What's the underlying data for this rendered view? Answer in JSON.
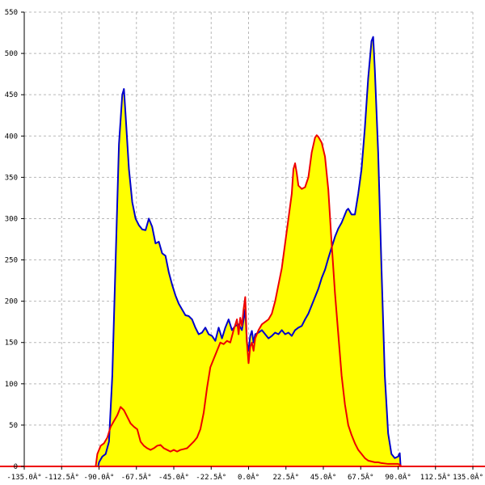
{
  "chart_data": {
    "type": "area",
    "title": "",
    "xlabel": "",
    "ylabel": "",
    "xlim": [
      -135,
      135
    ],
    "ylim": [
      0,
      550
    ],
    "grid": true,
    "fill_color": "#ffff00",
    "x_ticks": [
      -135,
      -112.5,
      -90,
      -67.5,
      -45,
      -22.5,
      0,
      22.5,
      45,
      67.5,
      90,
      112.5,
      135
    ],
    "x_tick_labels": [
      "-135.0Â°",
      "-112.5Â°",
      "-90.0Â°",
      "-67.5Â°",
      "-45.0Â°",
      "-22.5Â°",
      "0.0Â°",
      "22.5Â°",
      "45.0Â°",
      "67.5Â°",
      "90.0Â°",
      "112.5Â°",
      "135.0Â°"
    ],
    "y_ticks": [
      0,
      50,
      100,
      150,
      200,
      250,
      300,
      350,
      400,
      450,
      500,
      550
    ],
    "y_tick_labels": [
      "0",
      "50",
      "100",
      "150",
      "200",
      "250",
      "300",
      "350",
      "400",
      "450",
      "500",
      "550"
    ],
    "series": [
      {
        "color": "#0000cc",
        "points": [
          [
            -135,
            0
          ],
          [
            -90.5,
            0
          ],
          [
            -90,
            5
          ],
          [
            -88,
            12
          ],
          [
            -86,
            15
          ],
          [
            -84,
            30
          ],
          [
            -82,
            110
          ],
          [
            -80,
            250
          ],
          [
            -78,
            390
          ],
          [
            -76,
            450
          ],
          [
            -75,
            457
          ],
          [
            -74,
            425
          ],
          [
            -72,
            360
          ],
          [
            -70,
            320
          ],
          [
            -68,
            300
          ],
          [
            -66,
            292
          ],
          [
            -64,
            287
          ],
          [
            -62,
            286
          ],
          [
            -60,
            300
          ],
          [
            -58,
            290
          ],
          [
            -56,
            270
          ],
          [
            -54,
            272
          ],
          [
            -52,
            258
          ],
          [
            -50,
            255
          ],
          [
            -48,
            235
          ],
          [
            -46,
            220
          ],
          [
            -44,
            207
          ],
          [
            -42,
            197
          ],
          [
            -40,
            190
          ],
          [
            -38,
            183
          ],
          [
            -36,
            182
          ],
          [
            -34,
            178
          ],
          [
            -32,
            168
          ],
          [
            -30,
            160
          ],
          [
            -28,
            162
          ],
          [
            -26,
            168
          ],
          [
            -24,
            160
          ],
          [
            -22,
            158
          ],
          [
            -20,
            152
          ],
          [
            -18,
            168
          ],
          [
            -16,
            155
          ],
          [
            -14,
            168
          ],
          [
            -12,
            178
          ],
          [
            -10,
            165
          ],
          [
            -8,
            170
          ],
          [
            -6,
            172
          ],
          [
            -4,
            165
          ],
          [
            -2,
            190
          ],
          [
            -1,
            150
          ],
          [
            0,
            140
          ],
          [
            1,
            158
          ],
          [
            2,
            164
          ],
          [
            3,
            150
          ],
          [
            4,
            160
          ],
          [
            6,
            162
          ],
          [
            8,
            165
          ],
          [
            10,
            160
          ],
          [
            12,
            155
          ],
          [
            14,
            158
          ],
          [
            16,
            162
          ],
          [
            18,
            160
          ],
          [
            20,
            165
          ],
          [
            22,
            160
          ],
          [
            24,
            162
          ],
          [
            26,
            158
          ],
          [
            28,
            165
          ],
          [
            30,
            168
          ],
          [
            32,
            170
          ],
          [
            34,
            178
          ],
          [
            36,
            185
          ],
          [
            38,
            195
          ],
          [
            40,
            205
          ],
          [
            42,
            215
          ],
          [
            44,
            228
          ],
          [
            46,
            238
          ],
          [
            48,
            252
          ],
          [
            50,
            265
          ],
          [
            52,
            278
          ],
          [
            54,
            288
          ],
          [
            56,
            295
          ],
          [
            58,
            305
          ],
          [
            59,
            310
          ],
          [
            60,
            312
          ],
          [
            62,
            305
          ],
          [
            64,
            305
          ],
          [
            66,
            330
          ],
          [
            68,
            360
          ],
          [
            70,
            410
          ],
          [
            72,
            470
          ],
          [
            74,
            515
          ],
          [
            75,
            520
          ],
          [
            76,
            480
          ],
          [
            78,
            380
          ],
          [
            80,
            240
          ],
          [
            82,
            110
          ],
          [
            84,
            40
          ],
          [
            86,
            15
          ],
          [
            88,
            10
          ],
          [
            90,
            12
          ],
          [
            91,
            16
          ],
          [
            91.5,
            0
          ],
          [
            135,
            0
          ]
        ]
      },
      {
        "color": "#ee0000",
        "points": [
          [
            -135,
            0
          ],
          [
            -92,
            0
          ],
          [
            -91,
            15
          ],
          [
            -89,
            25
          ],
          [
            -87,
            28
          ],
          [
            -85,
            35
          ],
          [
            -83,
            48
          ],
          [
            -81,
            55
          ],
          [
            -79,
            62
          ],
          [
            -77,
            72
          ],
          [
            -75,
            68
          ],
          [
            -73,
            60
          ],
          [
            -71,
            52
          ],
          [
            -69,
            48
          ],
          [
            -67,
            45
          ],
          [
            -65,
            30
          ],
          [
            -63,
            25
          ],
          [
            -61,
            22
          ],
          [
            -59,
            20
          ],
          [
            -57,
            22
          ],
          [
            -55,
            25
          ],
          [
            -53,
            26
          ],
          [
            -51,
            22
          ],
          [
            -49,
            20
          ],
          [
            -47,
            18
          ],
          [
            -45,
            20
          ],
          [
            -43,
            18
          ],
          [
            -41,
            20
          ],
          [
            -39,
            21
          ],
          [
            -37,
            22
          ],
          [
            -35,
            26
          ],
          [
            -33,
            30
          ],
          [
            -31,
            35
          ],
          [
            -29,
            45
          ],
          [
            -27,
            65
          ],
          [
            -25,
            95
          ],
          [
            -23,
            120
          ],
          [
            -21,
            130
          ],
          [
            -19,
            140
          ],
          [
            -17,
            150
          ],
          [
            -15,
            148
          ],
          [
            -13,
            152
          ],
          [
            -11,
            150
          ],
          [
            -9,
            165
          ],
          [
            -7,
            178
          ],
          [
            -6,
            160
          ],
          [
            -5,
            180
          ],
          [
            -4,
            170
          ],
          [
            -3,
            190
          ],
          [
            -2,
            205
          ],
          [
            -1,
            150
          ],
          [
            0,
            125
          ],
          [
            1,
            145
          ],
          [
            2,
            150
          ],
          [
            3,
            140
          ],
          [
            4,
            155
          ],
          [
            6,
            165
          ],
          [
            8,
            172
          ],
          [
            10,
            175
          ],
          [
            12,
            178
          ],
          [
            14,
            185
          ],
          [
            16,
            200
          ],
          [
            18,
            220
          ],
          [
            20,
            240
          ],
          [
            22,
            270
          ],
          [
            24,
            300
          ],
          [
            26,
            330
          ],
          [
            27,
            360
          ],
          [
            28,
            367
          ],
          [
            29,
            355
          ],
          [
            30,
            340
          ],
          [
            32,
            336
          ],
          [
            34,
            338
          ],
          [
            36,
            350
          ],
          [
            38,
            380
          ],
          [
            40,
            398
          ],
          [
            41,
            401
          ],
          [
            42,
            399
          ],
          [
            44,
            392
          ],
          [
            46,
            375
          ],
          [
            48,
            335
          ],
          [
            50,
            270
          ],
          [
            52,
            210
          ],
          [
            54,
            160
          ],
          [
            56,
            110
          ],
          [
            58,
            75
          ],
          [
            60,
            50
          ],
          [
            62,
            38
          ],
          [
            64,
            28
          ],
          [
            66,
            20
          ],
          [
            68,
            15
          ],
          [
            70,
            10
          ],
          [
            72,
            7
          ],
          [
            74,
            6
          ],
          [
            76,
            5
          ],
          [
            78,
            5
          ],
          [
            80,
            4
          ],
          [
            84,
            3
          ],
          [
            88,
            3
          ],
          [
            90,
            3
          ],
          [
            91,
            2
          ],
          [
            92,
            0
          ],
          [
            135,
            0
          ]
        ]
      }
    ]
  }
}
